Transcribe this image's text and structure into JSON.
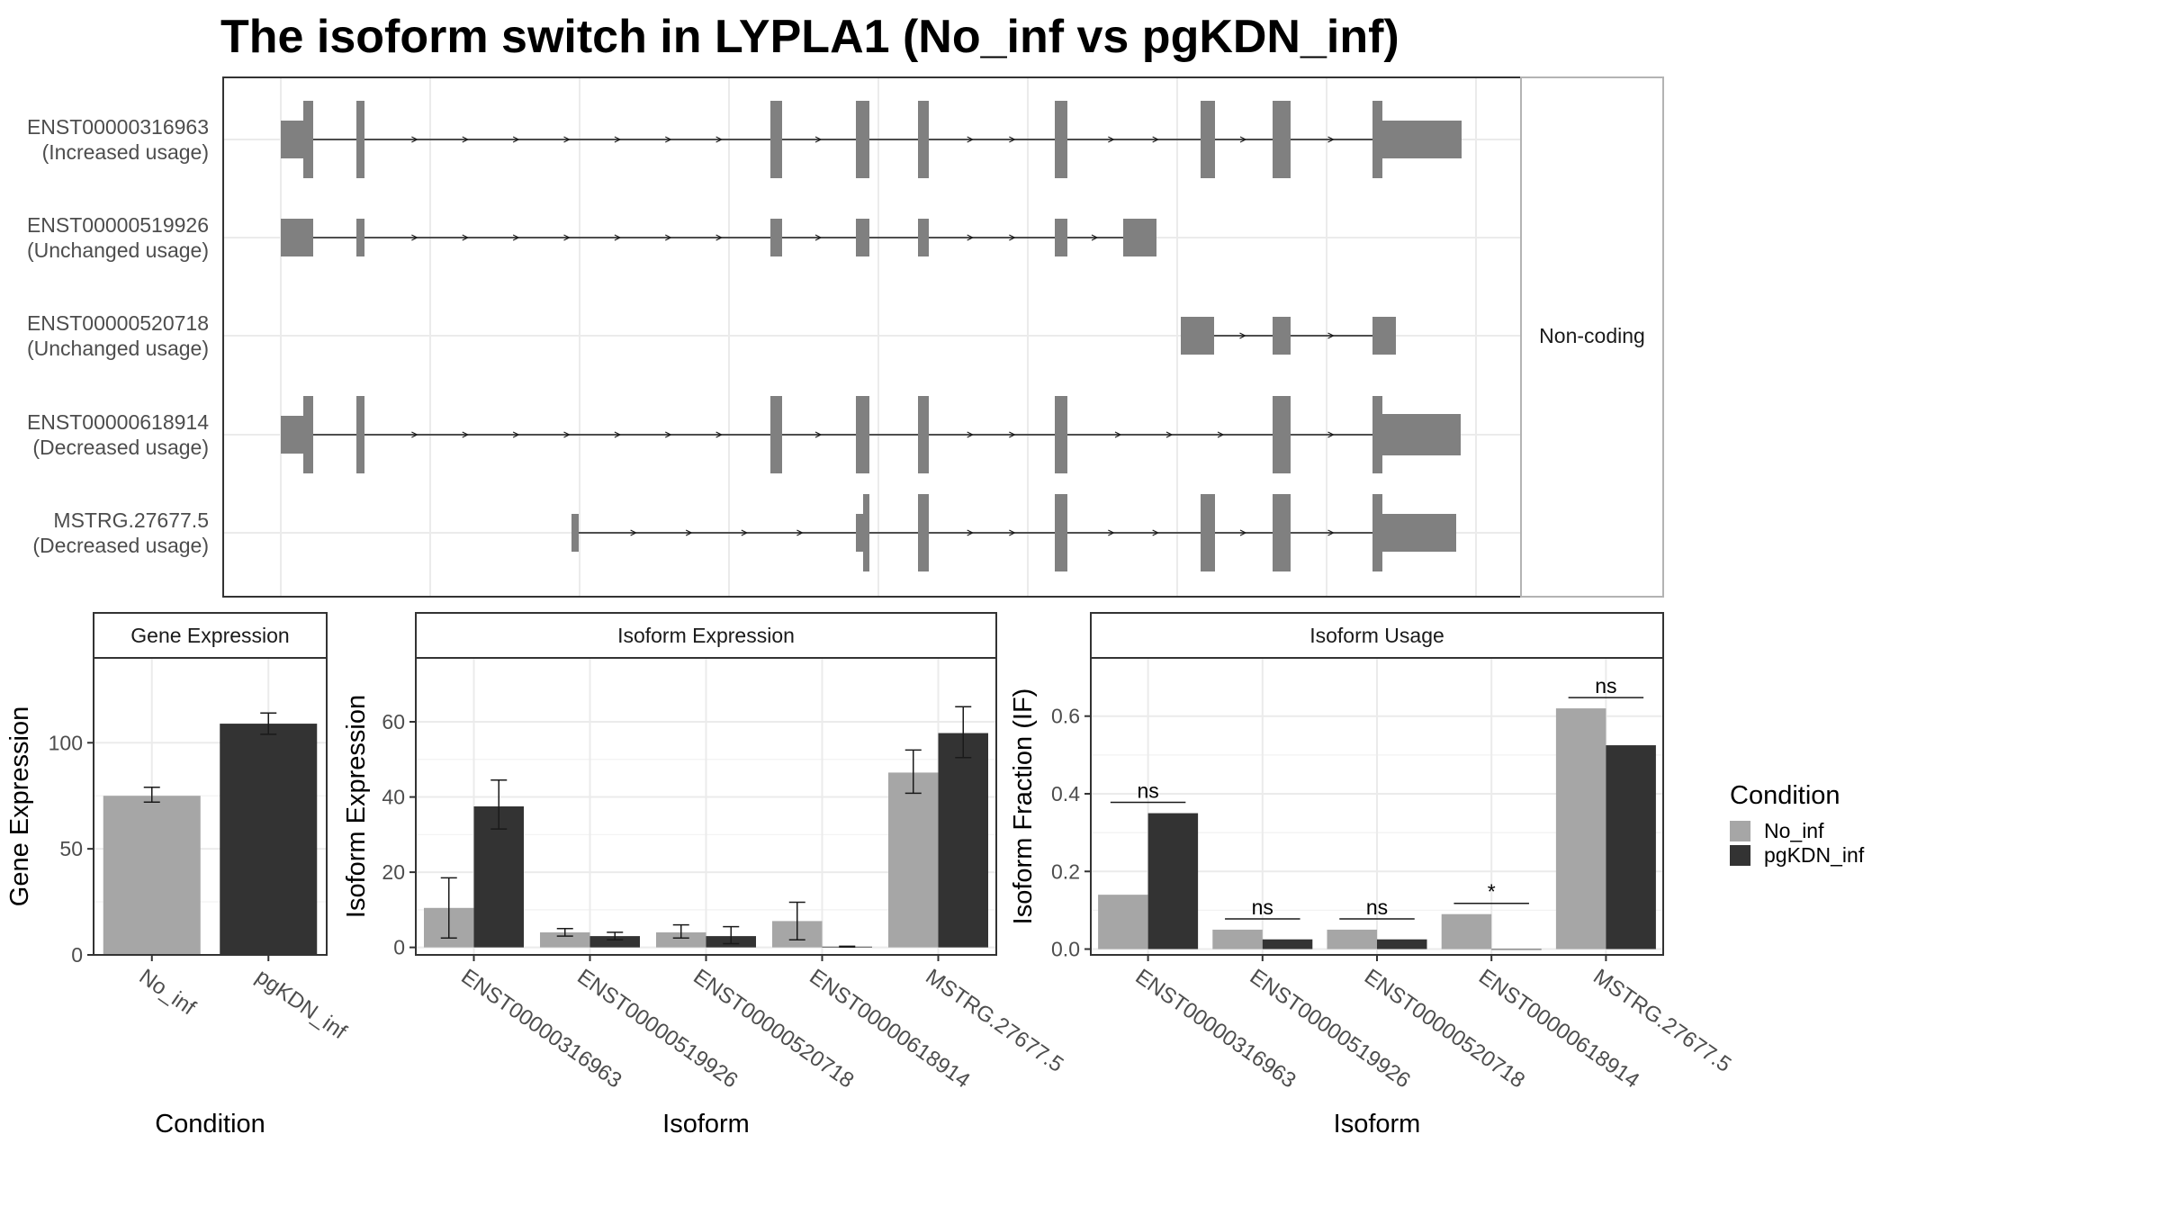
{
  "title": "The isoform switch in LYPLA1 (No_inf vs pgKDN_inf)",
  "colors": {
    "No_inf": "#a6a6a6",
    "pgKDN_inf": "#333333",
    "exon": "#808080",
    "grid": "#ebebeb"
  },
  "structure": {
    "transcripts": [
      {
        "id": "ENST00000316963",
        "usage": "(Increased usage)"
      },
      {
        "id": "ENST00000519926",
        "usage": "(Unchanged usage)"
      },
      {
        "id": "ENST00000520718",
        "usage": "(Unchanged usage)"
      },
      {
        "id": "ENST00000618914",
        "usage": "(Decreased usage)"
      },
      {
        "id": "MSTRG.27677.5",
        "usage": "(Decreased usage)"
      }
    ],
    "noncoding_label": "Non-coding"
  },
  "legend": {
    "title": "Condition",
    "items": [
      "No_inf",
      "pgKDN_inf"
    ]
  },
  "chart_data": [
    {
      "type": "bar",
      "title": "Gene Expression",
      "xlabel": "Condition",
      "ylabel": "Gene Expression",
      "categories": [
        "No_inf",
        "pgKDN_inf"
      ],
      "values": [
        75,
        109
      ],
      "errors": [
        [
          72,
          79
        ],
        [
          104,
          114
        ]
      ],
      "ylim": [
        0,
        140
      ],
      "yticks": [
        0,
        50,
        100
      ]
    },
    {
      "type": "bar",
      "title": "Isoform Expression",
      "xlabel": "Isoform",
      "ylabel": "Isoform Expression",
      "categories": [
        "ENST00000316963",
        "ENST00000519926",
        "ENST00000520718",
        "ENST00000618914",
        "MSTRG.27677.5"
      ],
      "series": [
        {
          "name": "No_inf",
          "values": [
            10.5,
            4.0,
            4.0,
            7.0,
            46.5
          ],
          "errors": [
            [
              2.5,
              18.5
            ],
            [
              3.0,
              5.0
            ],
            [
              2.5,
              6.0
            ],
            [
              2.0,
              12.0
            ],
            [
              41.0,
              52.5
            ]
          ]
        },
        {
          "name": "pgKDN_inf",
          "values": [
            37.5,
            3.0,
            3.0,
            0.2,
            57.0
          ],
          "errors": [
            [
              31.5,
              44.5
            ],
            [
              2.0,
              4.0
            ],
            [
              1.0,
              5.5
            ],
            [
              0.1,
              0.3
            ],
            [
              50.5,
              64.0
            ]
          ]
        }
      ],
      "ylim": [
        -2,
        77
      ],
      "yticks": [
        0,
        20,
        40,
        60
      ]
    },
    {
      "type": "bar",
      "title": "Isoform Usage",
      "xlabel": "Isoform",
      "ylabel": "Isoform Fraction (IF)",
      "categories": [
        "ENST00000316963",
        "ENST00000519926",
        "ENST00000520718",
        "ENST00000618914",
        "MSTRG.27677.5"
      ],
      "series": [
        {
          "name": "No_inf",
          "values": [
            0.14,
            0.05,
            0.05,
            0.09,
            0.62
          ]
        },
        {
          "name": "pgKDN_inf",
          "values": [
            0.35,
            0.025,
            0.025,
            0.0,
            0.525
          ]
        }
      ],
      "significance": [
        "ns",
        "ns",
        "ns",
        "*",
        "ns"
      ],
      "ylim": [
        -0.015,
        0.75
      ],
      "yticks": [
        0.0,
        0.2,
        0.4,
        0.6
      ],
      "ytick_labels": [
        "0.0",
        "0.2",
        "0.4",
        "0.6"
      ]
    }
  ]
}
